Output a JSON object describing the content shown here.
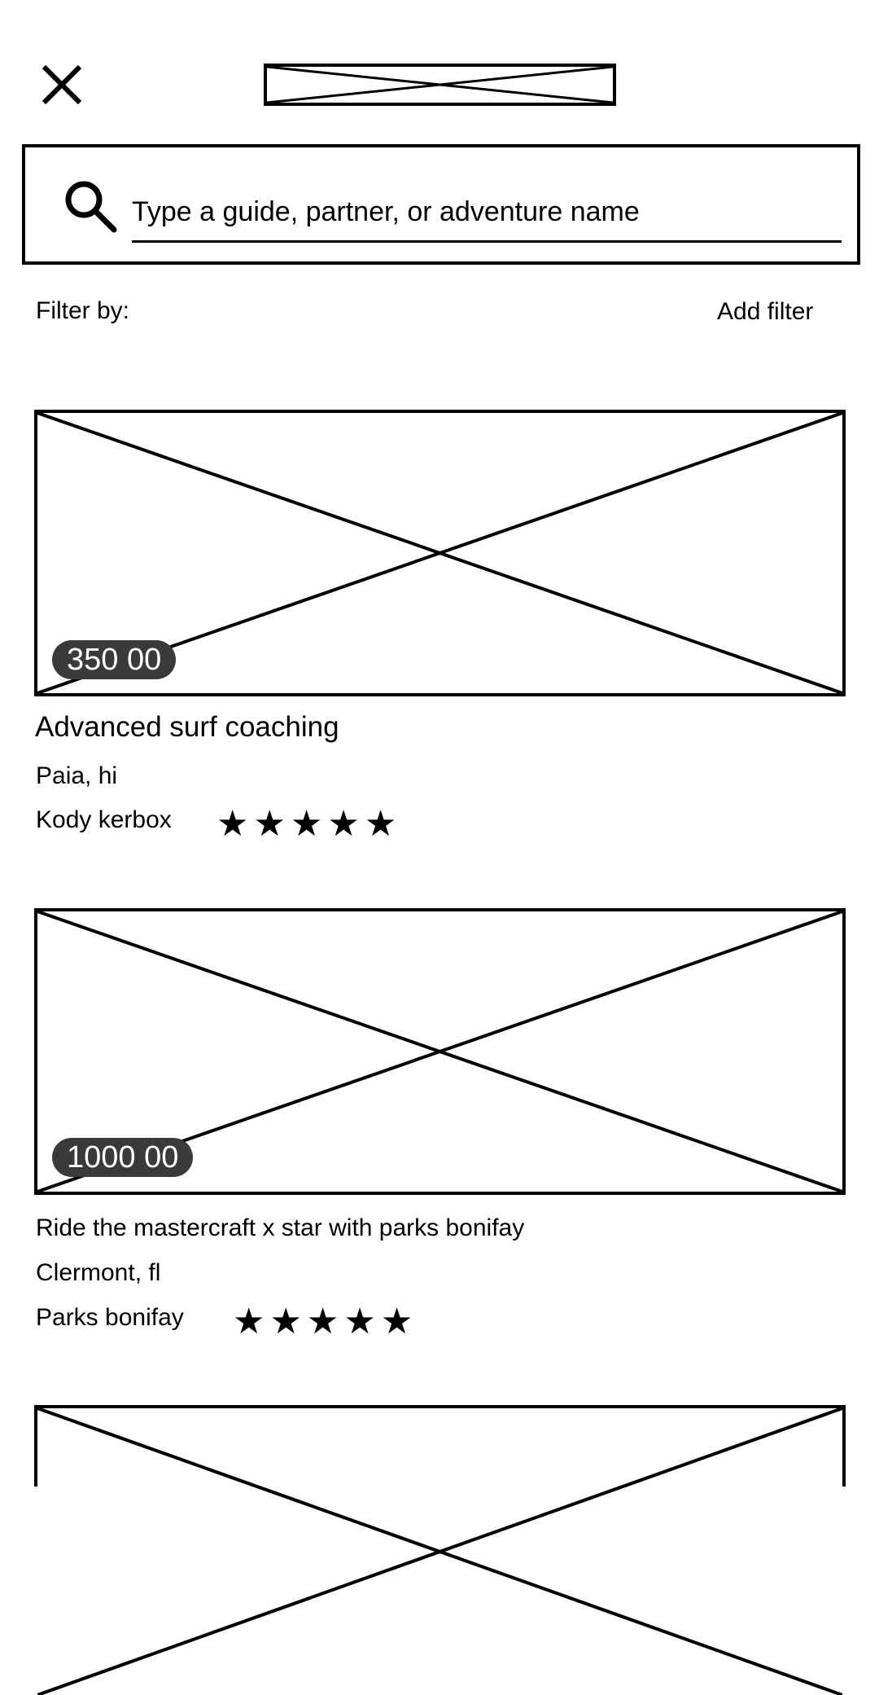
{
  "search": {
    "placeholder": "Type a guide, partner, or adventure name"
  },
  "filter": {
    "label": "Filter by:",
    "add_label": "Add filter"
  },
  "listings": [
    {
      "price": "350 00",
      "title": "Advanced surf coaching",
      "location": "Paia, hi",
      "guide": "Kody kerbox",
      "rating": 5
    },
    {
      "price": "1000 00",
      "title": "Ride the mastercraft x star with parks bonifay",
      "location": "Clermont, fl",
      "guide": "Parks bonifay",
      "rating": 5
    }
  ],
  "stars": [
    "★",
    "★",
    "★",
    "★",
    "★"
  ]
}
